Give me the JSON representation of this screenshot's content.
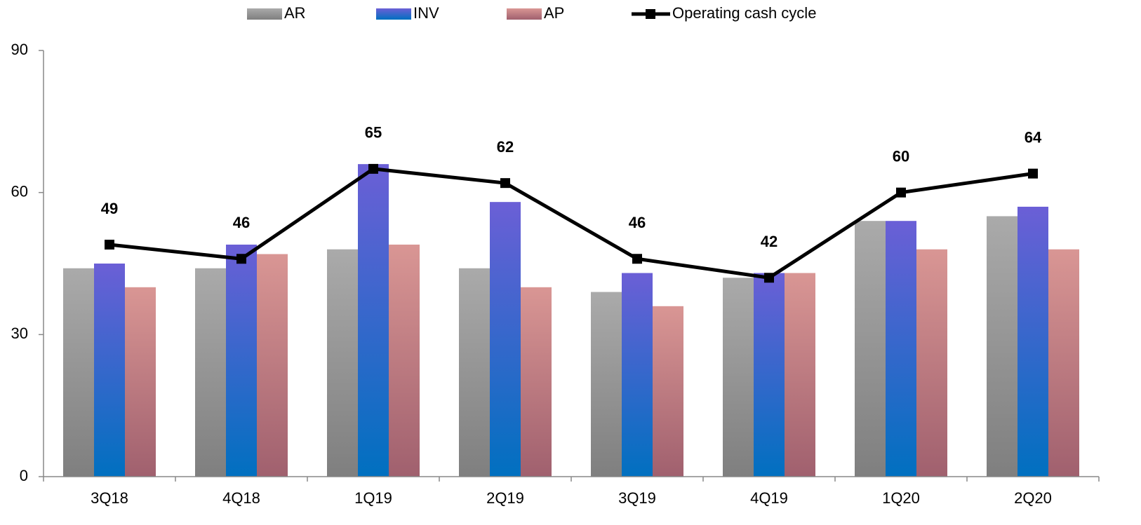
{
  "chart_data": {
    "type": "bar",
    "categories": [
      "3Q18",
      "4Q18",
      "1Q19",
      "2Q19",
      "3Q19",
      "4Q19",
      "1Q20",
      "2Q20"
    ],
    "series": [
      {
        "name": "AR",
        "type": "bar",
        "gradient": [
          "#aaaaaa",
          "#7f7f7f"
        ],
        "values": [
          44,
          44,
          48,
          44,
          39,
          42,
          54,
          55
        ]
      },
      {
        "name": "INV",
        "type": "bar",
        "gradient": [
          "#6b5fd6",
          "#0070c0"
        ],
        "values": [
          45,
          49,
          66,
          58,
          43,
          43,
          54,
          57
        ]
      },
      {
        "name": "AP",
        "type": "bar",
        "gradient": [
          "#d99694",
          "#a0606e"
        ],
        "values": [
          40,
          47,
          49,
          40,
          36,
          43,
          48,
          48
        ]
      },
      {
        "name": "Operating cash cycle",
        "type": "line",
        "color": "#000000",
        "values": [
          49,
          46,
          65,
          62,
          46,
          42,
          60,
          64
        ]
      }
    ],
    "ylim": [
      0,
      90
    ],
    "yticks": [
      0,
      30,
      60,
      90
    ],
    "legend": "top"
  }
}
